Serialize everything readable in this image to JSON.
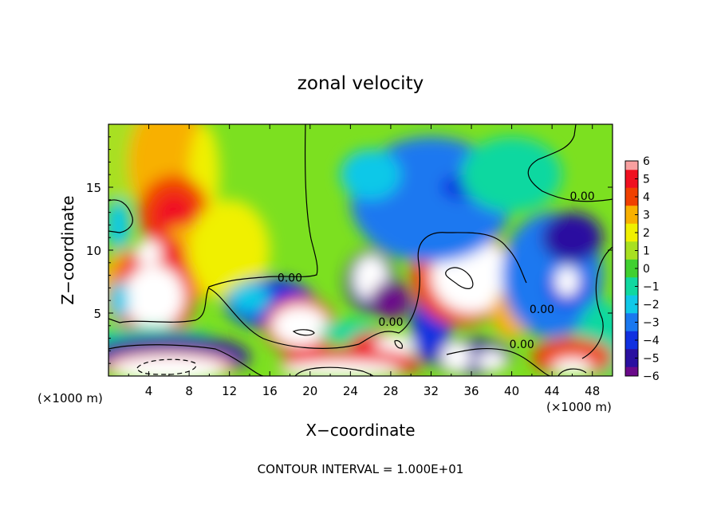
{
  "chart_data": {
    "type": "heatmap",
    "title": "zonal velocity",
    "xlabel": "X−coordinate",
    "ylabel": "Z−coordinate",
    "x_unit_left": "(×1000 m)",
    "x_unit_right": "(×1000 m)",
    "footer": "CONTOUR INTERVAL = 1.000E+01",
    "xlim": [
      0,
      50
    ],
    "ylim": [
      0,
      20
    ],
    "x_ticks": [
      "4",
      "8",
      "12",
      "16",
      "20",
      "24",
      "28",
      "32",
      "36",
      "40",
      "44",
      "48"
    ],
    "y_ticks": [
      "5",
      "10",
      "15"
    ],
    "colorbar": {
      "range": [
        -6,
        6
      ],
      "ticks": [
        "6",
        "5",
        "4",
        "3",
        "2",
        "1",
        "0",
        "−1",
        "−2",
        "−3",
        "−4",
        "−5",
        "−6"
      ],
      "colors": {
        "v-6": "#6a0a8a",
        "v-5": "#2a10a0",
        "v-4": "#1030e0",
        "v-3": "#1a78f0",
        "v-2": "#10c8e8",
        "v-1": "#10d8a0",
        "v0": "#40d030",
        "v1": "#a8e020",
        "v2": "#f0f000",
        "v3": "#f8b000",
        "v4": "#f04000",
        "v5": "#f01020",
        "v6": "#f8a0a0"
      }
    },
    "contour_labels": [
      {
        "text": "0.00",
        "x": 18,
        "y": 7.5
      },
      {
        "text": "0.00",
        "x": 28,
        "y": 4
      },
      {
        "text": "0.00",
        "x": 47,
        "y": 14
      },
      {
        "text": "0.00",
        "x": 43,
        "y": 5
      },
      {
        "text": "0.00",
        "x": 41,
        "y": 2.2
      }
    ],
    "blobs": [
      {
        "x": 2,
        "y": 18,
        "rx": 5,
        "ry": 4,
        "v": 1
      },
      {
        "x": 6,
        "y": 17,
        "rx": 4,
        "ry": 5,
        "v": 3
      },
      {
        "x": 9.5,
        "y": 16,
        "rx": 1.5,
        "ry": 4,
        "v": 2
      },
      {
        "x": 6.5,
        "y": 13,
        "rx": 3.5,
        "ry": 3,
        "v": 4
      },
      {
        "x": 6.5,
        "y": 12.5,
        "rx": 2,
        "ry": 2,
        "v": 5
      },
      {
        "x": 8,
        "y": 9,
        "rx": 4,
        "ry": 3,
        "v": 3
      },
      {
        "x": 12,
        "y": 10,
        "rx": 4,
        "ry": 4,
        "v": 2
      },
      {
        "x": 1,
        "y": 12,
        "rx": 1.2,
        "ry": 2,
        "v": -2
      },
      {
        "x": 2,
        "y": 7,
        "rx": 3,
        "ry": 3,
        "v": 3
      },
      {
        "x": 4.5,
        "y": 6.5,
        "rx": 4,
        "ry": 4,
        "v": 5
      },
      {
        "x": 5,
        "y": 9.5,
        "rx": 2.5,
        "ry": 1.8,
        "v": 5
      },
      {
        "x": 4.5,
        "y": 6.3,
        "rx": 3,
        "ry": 2.5,
        "v": 8
      },
      {
        "x": 4,
        "y": 9.8,
        "rx": 1.3,
        "ry": 1,
        "v": 8
      },
      {
        "x": 1,
        "y": 6,
        "rx": 1,
        "ry": 1.5,
        "v": -2
      },
      {
        "x": 4,
        "y": 2.5,
        "rx": 7,
        "ry": 1.5,
        "v": -1
      },
      {
        "x": 6,
        "y": 1.5,
        "rx": 8,
        "ry": 1.8,
        "v": -5
      },
      {
        "x": 6,
        "y": 0.8,
        "rx": 6.5,
        "ry": 1.2,
        "v": 6
      },
      {
        "x": 6,
        "y": 0.5,
        "rx": 5.5,
        "ry": 1,
        "v": 8
      },
      {
        "x": 16,
        "y": 5.8,
        "rx": 4.5,
        "ry": 2,
        "v": -4
      },
      {
        "x": 14,
        "y": 6.2,
        "rx": 2,
        "ry": 1.2,
        "v": -2
      },
      {
        "x": 19,
        "y": 4,
        "rx": 3.5,
        "ry": 2.3,
        "v": 5
      },
      {
        "x": 19,
        "y": 4,
        "rx": 2.8,
        "ry": 1.6,
        "v": 8
      },
      {
        "x": 26,
        "y": 7.5,
        "rx": 2.5,
        "ry": 2.5,
        "v": -5
      },
      {
        "x": 26,
        "y": 7.8,
        "rx": 1.7,
        "ry": 1.8,
        "v": 8
      },
      {
        "x": 28,
        "y": 6,
        "rx": 2,
        "ry": 1.5,
        "v": -6
      },
      {
        "x": 24,
        "y": 3.5,
        "rx": 3,
        "ry": 1,
        "v": -1
      },
      {
        "x": 27,
        "y": 2.6,
        "rx": 3,
        "ry": 0.9,
        "v": 5
      },
      {
        "x": 28.5,
        "y": 2.4,
        "rx": 2,
        "ry": 0.9,
        "v": 8
      },
      {
        "x": 24,
        "y": 1,
        "rx": 7,
        "ry": 1.2,
        "v": 5
      },
      {
        "x": 23,
        "y": 0.5,
        "rx": 6,
        "ry": 0.7,
        "v": 8
      },
      {
        "x": 32,
        "y": 4,
        "rx": 2,
        "ry": 3,
        "v": -4
      },
      {
        "x": 35,
        "y": 8,
        "rx": 5,
        "ry": 4,
        "v": 4
      },
      {
        "x": 36,
        "y": 8,
        "rx": 4,
        "ry": 3,
        "v": 8
      },
      {
        "x": 40,
        "y": 5,
        "rx": 2,
        "ry": 2,
        "v": 3
      },
      {
        "x": 36,
        "y": 1.5,
        "rx": 4,
        "ry": 1.5,
        "v": -5
      },
      {
        "x": 34.5,
        "y": 1.5,
        "rx": 1.5,
        "ry": 1.2,
        "v": 8
      },
      {
        "x": 38,
        "y": 1.2,
        "rx": 1.5,
        "ry": 0.8,
        "v": 8
      },
      {
        "x": 32,
        "y": 14,
        "rx": 8,
        "ry": 5,
        "v": -3
      },
      {
        "x": 35,
        "y": 15,
        "rx": 2,
        "ry": 1,
        "v": -4
      },
      {
        "x": 26,
        "y": 16,
        "rx": 3,
        "ry": 2,
        "v": -2
      },
      {
        "x": 40,
        "y": 16,
        "rx": 5,
        "ry": 3,
        "v": -1
      },
      {
        "x": 44,
        "y": 8,
        "rx": 5,
        "ry": 5,
        "v": -3
      },
      {
        "x": 46,
        "y": 11,
        "rx": 3,
        "ry": 2,
        "v": -5
      },
      {
        "x": 45.5,
        "y": 7,
        "rx": 2,
        "ry": 1.5,
        "v": -4
      },
      {
        "x": 45.5,
        "y": 7.5,
        "rx": 1.2,
        "ry": 1.2,
        "v": 8
      },
      {
        "x": 49,
        "y": 3,
        "rx": 2.5,
        "ry": 3,
        "v": -1
      },
      {
        "x": 46,
        "y": 1.5,
        "rx": 4,
        "ry": 1.5,
        "v": 4
      },
      {
        "x": 46,
        "y": 0.7,
        "rx": 2,
        "ry": 0.7,
        "v": 8
      }
    ]
  }
}
